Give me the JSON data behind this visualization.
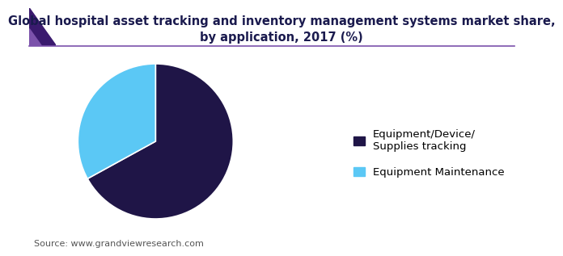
{
  "title": "Global hospital asset tracking and inventory management systems market share,\nby application, 2017 (%)",
  "slices": [
    {
      "label": "Equipment/Device/\nSupplies tracking",
      "value": 67,
      "color": "#1f1547"
    },
    {
      "label": "Equipment Maintenance",
      "value": 33,
      "color": "#5bc8f5"
    }
  ],
  "source": "Source: www.grandviewresearch.com",
  "background_color": "#ffffff",
  "title_fontsize": 10.5,
  "legend_fontsize": 9.5,
  "source_fontsize": 8,
  "startangle": 90,
  "title_color": "#1a1a4e",
  "accent_color": "#5b2d8e",
  "accent_color2": "#7b52ab",
  "line_color": "#7b52ab"
}
